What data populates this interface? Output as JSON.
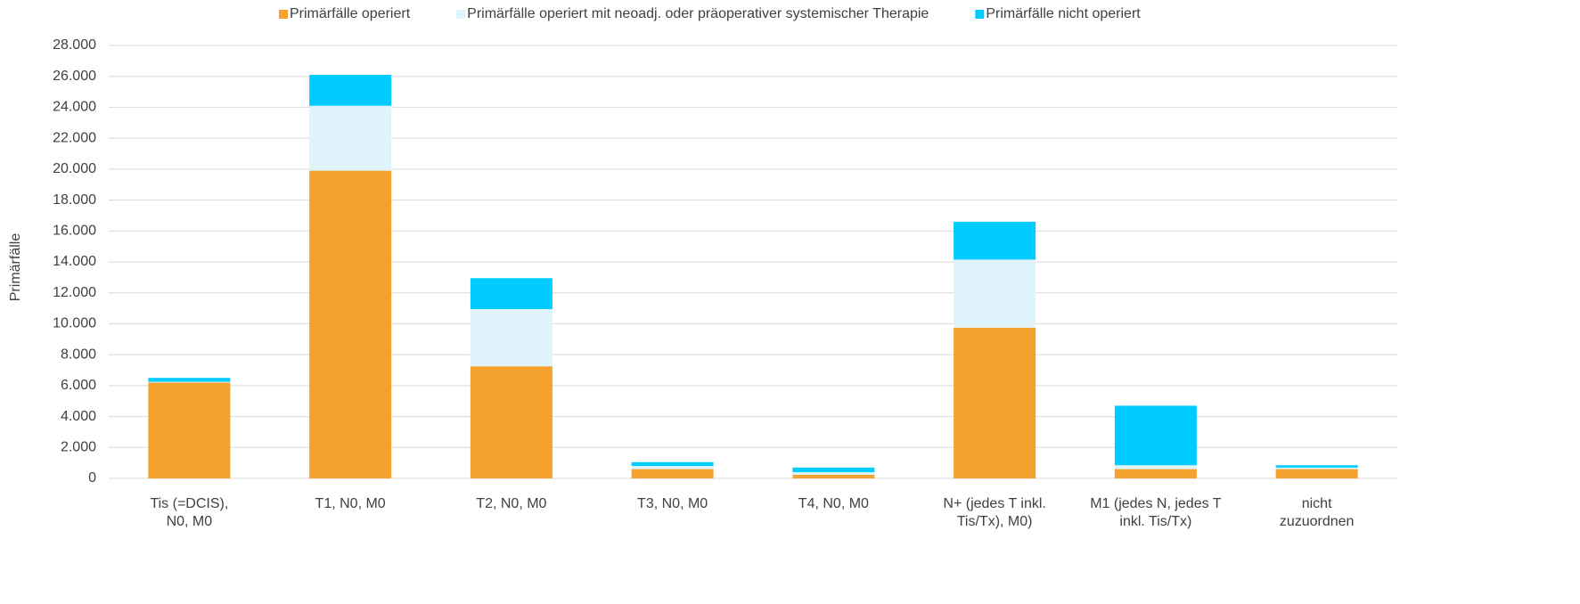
{
  "chart_data": {
    "type": "stacked_bar",
    "y_label": "Primärfälle",
    "categories": [
      [
        "Tis (=DCIS),",
        "N0, M0"
      ],
      [
        "T1, N0, M0"
      ],
      [
        "T2, N0, M0"
      ],
      [
        "T3, N0, M0"
      ],
      [
        "T4, N0, M0"
      ],
      [
        "N+ (jedes T inkl.",
        "Tis/Tx), M0)"
      ],
      [
        "M1 (jedes N, jedes T",
        "inkl. Tis/Tx)"
      ],
      [
        "nicht",
        "zuzuordnen"
      ]
    ],
    "series": [
      {
        "name": "Primärfälle operiert",
        "color": "#f4a12e",
        "values": [
          6200,
          19900,
          7250,
          600,
          230,
          9750,
          600,
          600
        ]
      },
      {
        "name": "Primärfälle operiert mit neoadj. oder präoperativer systemischer Therapie",
        "color": "#dff3fa",
        "values": [
          50,
          4200,
          3700,
          200,
          170,
          4400,
          250,
          100
        ]
      },
      {
        "name": "Primärfälle nicht operiert",
        "color": "#00ccff",
        "values": [
          250,
          2000,
          2000,
          250,
          300,
          2450,
          3850,
          150
        ]
      }
    ],
    "ylim": [
      0,
      28000
    ],
    "yticks": [
      0,
      {
        "value": 2000,
        "label": "2.000"
      },
      {
        "value": 4000,
        "label": "4.000"
      },
      {
        "value": 6000,
        "label": "6.000"
      },
      {
        "value": 8000,
        "label": "8.000"
      },
      {
        "value": 10000,
        "label": "10.000"
      },
      {
        "value": 12000,
        "label": "12.000"
      },
      {
        "value": 14000,
        "label": "14.000"
      },
      {
        "value": 16000,
        "label": "16.000"
      },
      {
        "value": 18000,
        "label": "18.000"
      },
      {
        "value": 20000,
        "label": "20.000"
      },
      {
        "value": 22000,
        "label": "22.000"
      },
      {
        "value": 24000,
        "label": "24.000"
      },
      {
        "value": 26000,
        "label": "26.000"
      },
      {
        "value": 28000,
        "label": "28.000"
      }
    ],
    "grid": true,
    "legend": "top"
  }
}
